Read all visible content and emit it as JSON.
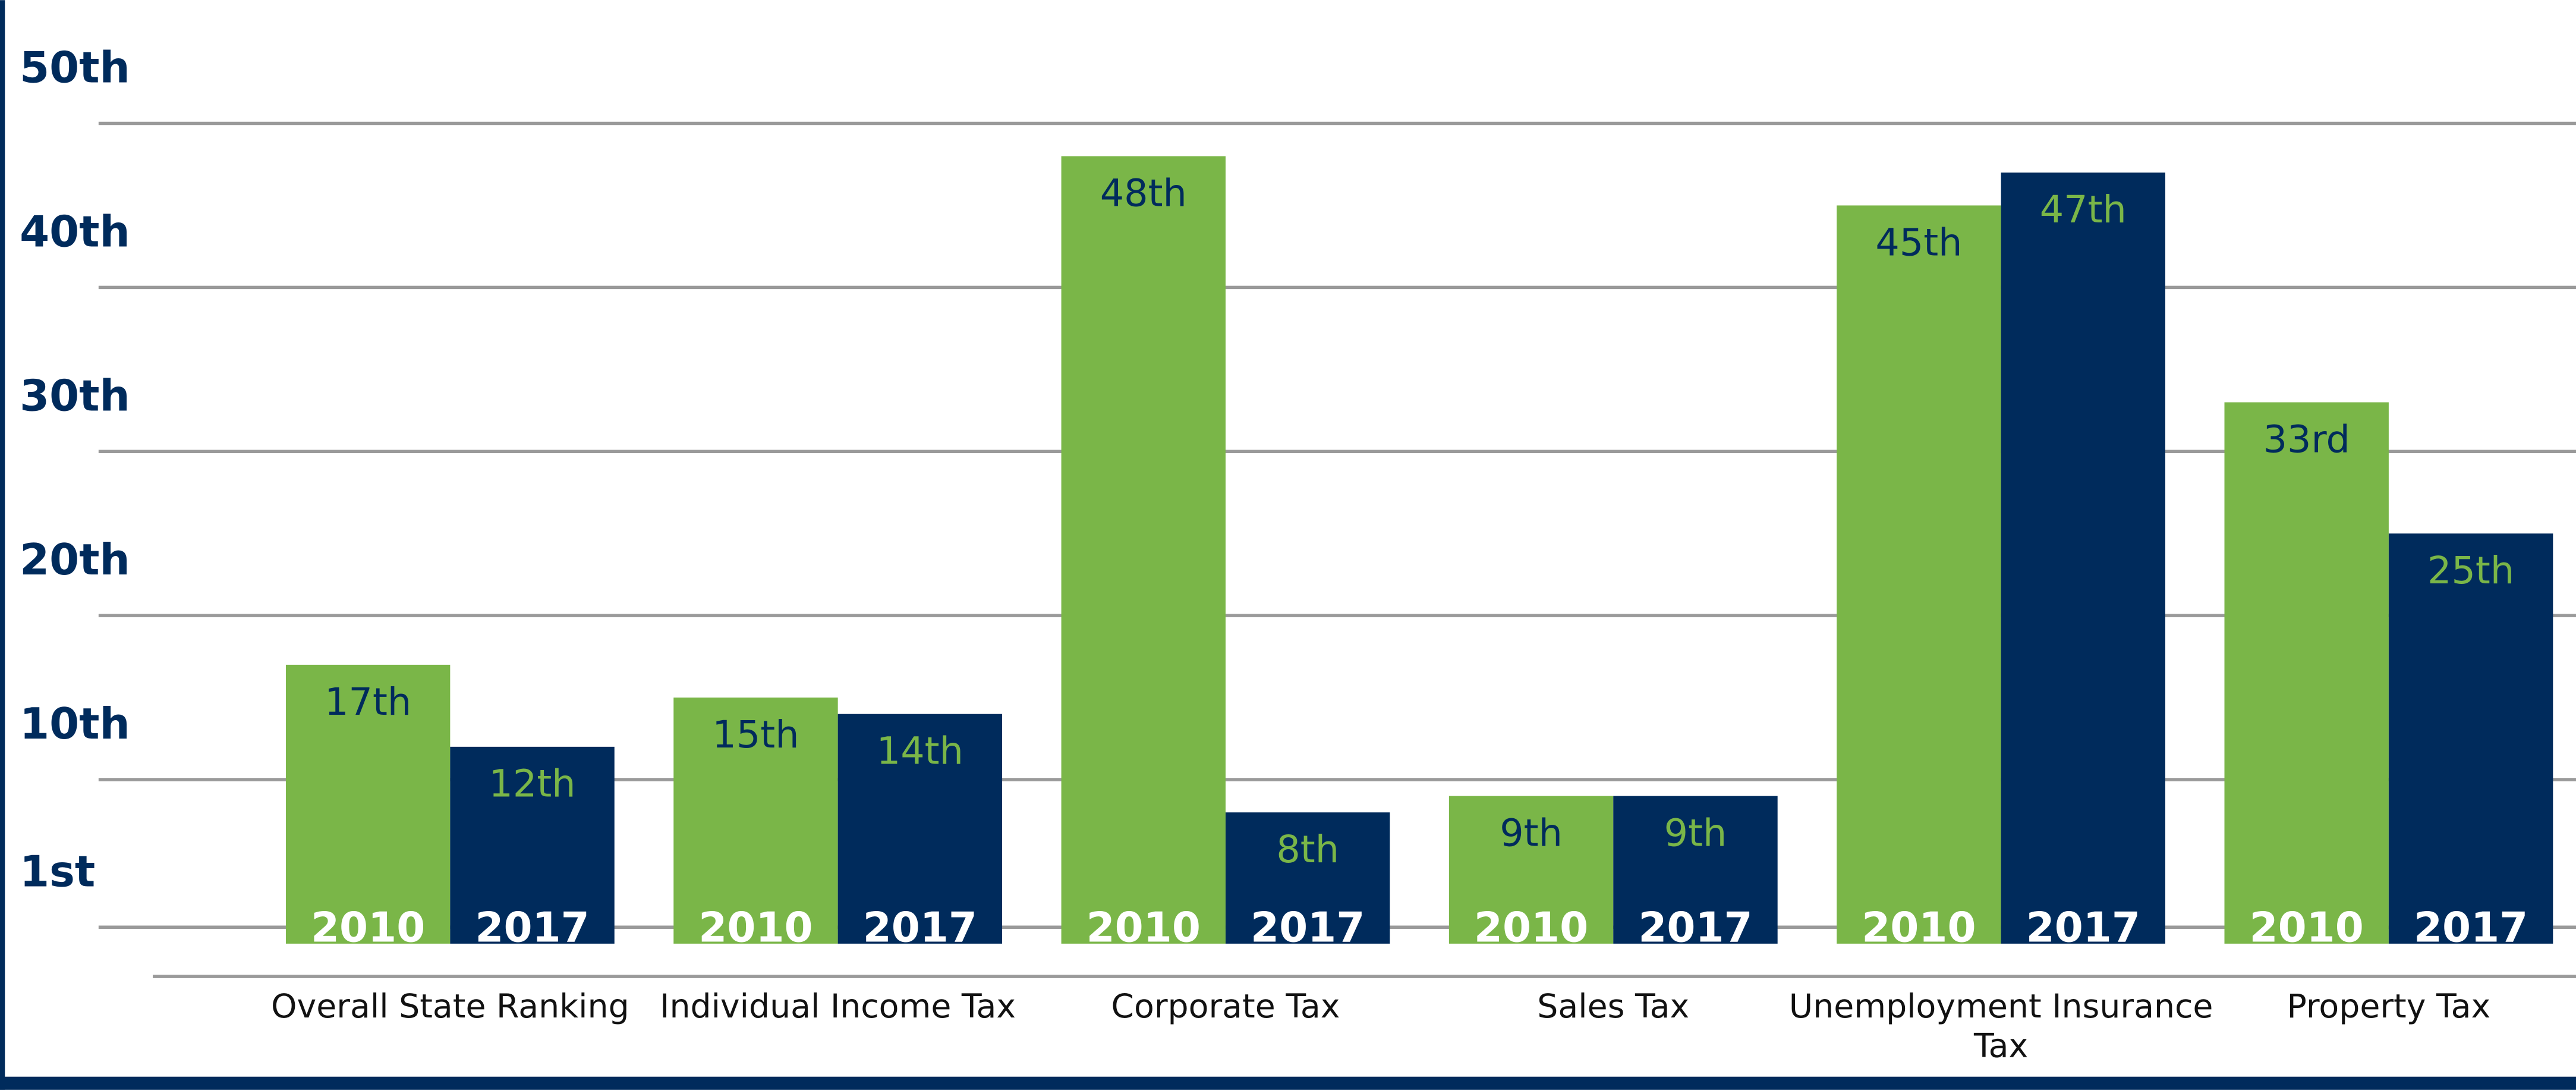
{
  "chart_data": {
    "type": "bar",
    "categories": [
      "Overall State Ranking",
      "Individual Income Tax",
      "Corporate Tax",
      "Sales Tax",
      "Unemployment Insurance Tax",
      "Property Tax"
    ],
    "series": [
      {
        "name": "2010",
        "color": "#7ab648",
        "values": [
          17,
          15,
          48,
          9,
          45,
          33
        ],
        "value_labels": [
          "17th",
          "15th",
          "48th",
          "9th",
          "45th",
          "33rd"
        ]
      },
      {
        "name": "2017",
        "color": "#002b5c",
        "values": [
          12,
          14,
          8,
          9,
          47,
          25
        ],
        "value_labels": [
          "12th",
          "14th",
          "8th",
          "9th",
          "47th",
          "25th"
        ]
      }
    ],
    "ylim": [
      -2,
      50
    ],
    "yticks": [
      {
        "value": 1,
        "label": "1st"
      },
      {
        "value": 10,
        "label": "10th"
      },
      {
        "value": 20,
        "label": "20th"
      },
      {
        "value": 30,
        "label": "30th"
      },
      {
        "value": 40,
        "label": "40th"
      },
      {
        "value": 50,
        "label": "50th"
      }
    ],
    "grid": true
  }
}
